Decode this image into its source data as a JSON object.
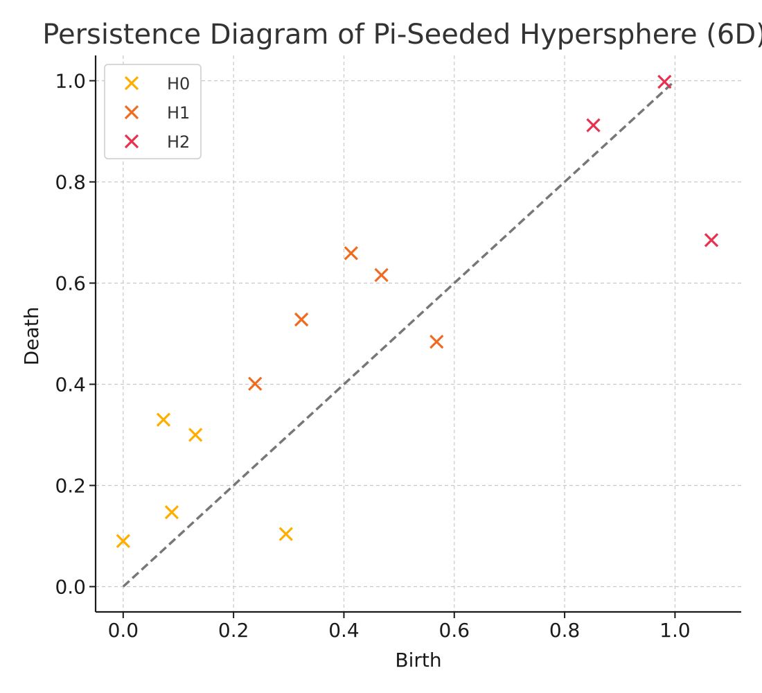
{
  "chart_data": {
    "type": "scatter",
    "title": "Persistence Diagram of Pi-Seeded Hypersphere (6D)",
    "xlabel": "Birth",
    "ylabel": "Death",
    "xlim": [
      -0.05,
      1.12
    ],
    "ylim": [
      -0.05,
      1.05
    ],
    "xticks": [
      0.0,
      0.2,
      0.4,
      0.6,
      0.8,
      1.0
    ],
    "yticks": [
      0.0,
      0.2,
      0.4,
      0.6,
      0.8,
      1.0
    ],
    "grid": true,
    "legend": "top-left",
    "diagonal": {
      "from": [
        0,
        0
      ],
      "to": [
        1,
        1
      ],
      "style": "dashed",
      "color": "#777777"
    },
    "series": [
      {
        "name": "H0",
        "color": "#FFAE00",
        "marker": "x",
        "points": [
          [
            0.0,
            0.09
          ],
          [
            0.073,
            0.33
          ],
          [
            0.088,
            0.147
          ],
          [
            0.131,
            0.3
          ],
          [
            0.295,
            0.104
          ]
        ]
      },
      {
        "name": "H1",
        "color": "#F06A20",
        "marker": "x",
        "points": [
          [
            0.239,
            0.401
          ],
          [
            0.323,
            0.528
          ],
          [
            0.413,
            0.659
          ],
          [
            0.468,
            0.616
          ],
          [
            0.568,
            0.484
          ]
        ]
      },
      {
        "name": "H2",
        "color": "#E8304F",
        "marker": "x",
        "points": [
          [
            0.852,
            0.912
          ],
          [
            0.981,
            0.998
          ],
          [
            1.066,
            0.685
          ]
        ]
      }
    ]
  }
}
